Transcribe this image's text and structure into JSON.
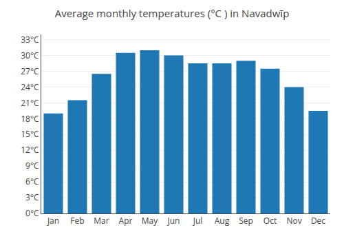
{
  "chart_data": {
    "type": "bar",
    "title": "Average monthly temperatures (°C ) in Navadwīp",
    "categories": [
      "Jan",
      "Feb",
      "Mar",
      "Apr",
      "May",
      "Jun",
      "Jul",
      "Aug",
      "Sep",
      "Oct",
      "Nov",
      "Dec"
    ],
    "values": [
      19.0,
      21.5,
      26.5,
      30.5,
      31.0,
      30.0,
      28.5,
      28.5,
      29.0,
      27.5,
      24.0,
      19.5
    ],
    "ylim": [
      0,
      34
    ],
    "yticks": [
      {
        "value": 0,
        "label": "0°C"
      },
      {
        "value": 3,
        "label": "3°C"
      },
      {
        "value": 6,
        "label": "6°C"
      },
      {
        "value": 9,
        "label": "9°C"
      },
      {
        "value": 12,
        "label": "12°C"
      },
      {
        "value": 15,
        "label": "15°C"
      },
      {
        "value": 18,
        "label": "18°C"
      },
      {
        "value": 21,
        "label": "21°C"
      },
      {
        "value": 24,
        "label": "24°C"
      },
      {
        "value": 27,
        "label": "27°C"
      },
      {
        "value": 30,
        "label": "30°C"
      },
      {
        "value": 33,
        "label": "33°C"
      }
    ],
    "grid": true
  }
}
